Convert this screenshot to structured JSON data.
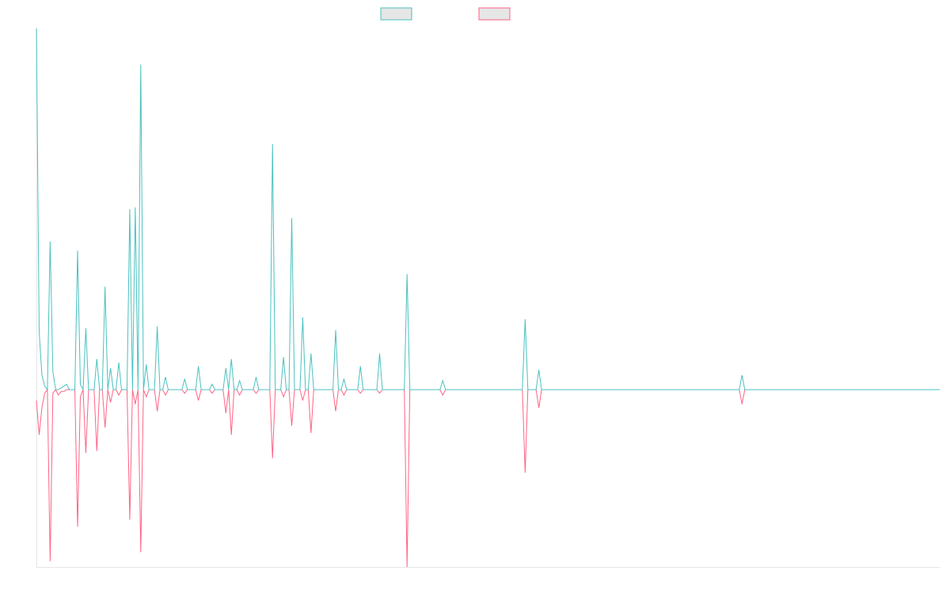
{
  "colors": {
    "series_a": "#4bc0c0",
    "series_b": "#ff6384",
    "swatch_fill": "#e6e6e6",
    "axis": "#e6e6e6"
  },
  "chart_data": {
    "type": "line",
    "legend_position": "top-center",
    "grid": false,
    "ylim": [
      -100,
      200
    ],
    "x_count": 330,
    "series": [
      {
        "color": "#4bc0c0",
        "points": [
          [
            0,
            200
          ],
          [
            1,
            32
          ],
          [
            2,
            8
          ],
          [
            3,
            2
          ],
          [
            4,
            0
          ],
          [
            5,
            82
          ],
          [
            6,
            10
          ],
          [
            7,
            0
          ],
          [
            8,
            0
          ],
          [
            9,
            1
          ],
          [
            10,
            2
          ],
          [
            11,
            3
          ],
          [
            12,
            0
          ],
          [
            13,
            0
          ],
          [
            14,
            0
          ],
          [
            15,
            0
          ],
          [
            16,
            0
          ],
          [
            17,
            0
          ],
          [
            18,
            0
          ],
          [
            19,
            0
          ],
          [
            20,
            0
          ],
          [
            21,
            0
          ],
          [
            22,
            0
          ],
          [
            23,
            0
          ],
          [
            24,
            0
          ],
          [
            25,
            0
          ],
          [
            26,
            0
          ],
          [
            27,
            0
          ],
          [
            28,
            0
          ],
          [
            29,
            0
          ],
          [
            30,
            0
          ],
          [
            31,
            0
          ],
          [
            32,
            0
          ],
          [
            33,
            0
          ],
          [
            34,
            0
          ],
          [
            35,
            0
          ],
          [
            36,
            0
          ],
          [
            37,
            0
          ],
          [
            38,
            0
          ],
          [
            39,
            0
          ],
          [
            40,
            0
          ]
        ]
      },
      {
        "color": "#ff6384",
        "points": [
          [
            0,
            -6
          ],
          [
            1,
            -25
          ],
          [
            2,
            -10
          ],
          [
            3,
            -2
          ],
          [
            4,
            0
          ],
          [
            5,
            -95
          ],
          [
            6,
            -2
          ],
          [
            7,
            0
          ],
          [
            8,
            -3
          ],
          [
            9,
            -1
          ],
          [
            10,
            -1
          ],
          [
            11,
            0
          ],
          [
            12,
            0
          ],
          [
            13,
            0
          ],
          [
            14,
            0
          ],
          [
            15,
            0
          ],
          [
            16,
            0
          ],
          [
            17,
            0
          ],
          [
            18,
            0
          ],
          [
            19,
            0
          ],
          [
            20,
            0
          ],
          [
            21,
            0
          ],
          [
            22,
            0
          ],
          [
            23,
            0
          ],
          [
            24,
            0
          ],
          [
            25,
            0
          ],
          [
            26,
            0
          ],
          [
            27,
            0
          ],
          [
            28,
            0
          ],
          [
            29,
            0
          ],
          [
            30,
            0
          ],
          [
            31,
            0
          ],
          [
            32,
            0
          ],
          [
            33,
            0
          ],
          [
            34,
            0
          ],
          [
            35,
            0
          ],
          [
            36,
            0
          ],
          [
            37,
            0
          ],
          [
            38,
            0
          ],
          [
            39,
            0
          ],
          [
            40,
            0
          ]
        ]
      }
    ],
    "spikes": [
      {
        "x": 15,
        "a": 77,
        "b": -76
      },
      {
        "x": 16,
        "a": 3,
        "b": -4
      },
      {
        "x": 18,
        "a": 34,
        "b": -35
      },
      {
        "x": 22,
        "a": 17,
        "b": -34
      },
      {
        "x": 25,
        "a": 57,
        "b": -21
      },
      {
        "x": 27,
        "a": 12,
        "b": -7
      },
      {
        "x": 30,
        "a": 15,
        "b": -3
      },
      {
        "x": 34,
        "a": 100,
        "b": -72
      },
      {
        "x": 36,
        "a": 101,
        "b": -8
      },
      {
        "x": 38,
        "a": 180,
        "b": -90
      },
      {
        "x": 40,
        "a": 14,
        "b": -4
      },
      {
        "x": 44,
        "a": 35,
        "b": -12
      },
      {
        "x": 47,
        "a": 7,
        "b": -3
      },
      {
        "x": 54,
        "a": 6,
        "b": -2
      },
      {
        "x": 59,
        "a": 13,
        "b": -6
      },
      {
        "x": 64,
        "a": 3,
        "b": -2
      },
      {
        "x": 69,
        "a": 12,
        "b": -13
      },
      {
        "x": 71,
        "a": 17,
        "b": -25
      },
      {
        "x": 74,
        "a": 5,
        "b": -3
      },
      {
        "x": 80,
        "a": 7,
        "b": -2
      },
      {
        "x": 86,
        "a": 136,
        "b": -38
      },
      {
        "x": 90,
        "a": 18,
        "b": -4
      },
      {
        "x": 93,
        "a": 95,
        "b": -20
      },
      {
        "x": 97,
        "a": 40,
        "b": -6
      },
      {
        "x": 100,
        "a": 20,
        "b": -24
      },
      {
        "x": 109,
        "a": 33,
        "b": -12
      },
      {
        "x": 112,
        "a": 6,
        "b": -3
      },
      {
        "x": 118,
        "a": 13,
        "b": -2
      },
      {
        "x": 125,
        "a": 20,
        "b": -2
      },
      {
        "x": 135,
        "a": 64,
        "b": -99
      },
      {
        "x": 148,
        "a": 5,
        "b": -3
      },
      {
        "x": 153,
        "a": 0,
        "b": 0
      },
      {
        "x": 178,
        "a": 39,
        "b": -46
      },
      {
        "x": 183,
        "a": 11,
        "b": -10
      },
      {
        "x": 257,
        "a": 8,
        "b": -8
      }
    ]
  }
}
